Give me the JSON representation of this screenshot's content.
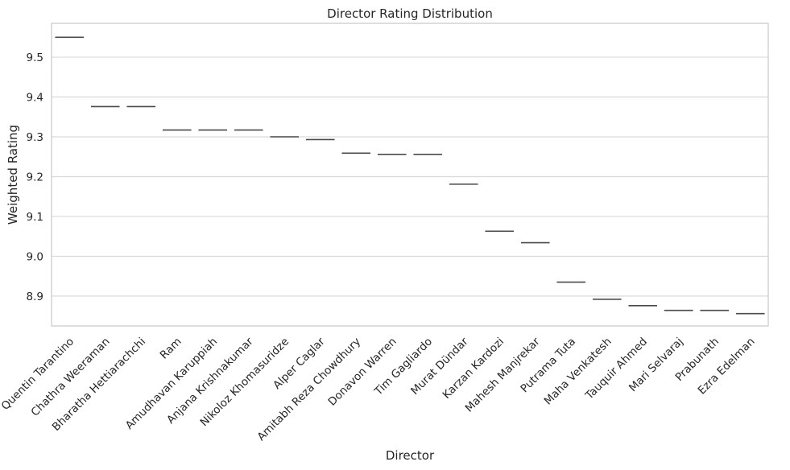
{
  "chart_data": {
    "type": "box",
    "title": "Director Rating Distribution",
    "xlabel": "Director",
    "ylabel": "Weighted Rating",
    "ylim": [
      8.825,
      9.585
    ],
    "yticks": [
      "8.9",
      "9.0",
      "9.1",
      "9.2",
      "9.3",
      "9.4",
      "9.5"
    ],
    "grid": true,
    "legend": "none",
    "categories": [
      "Quentin Tarantino",
      "Chathra Weeraman",
      "Bharatha Hettiarachchi",
      "Ram",
      "Amudhavan Karuppiah",
      "Anjana Krishnakumar",
      "Nikoloz Khomasuridze",
      "Alper Caglar",
      "Amitabh Reza Chowdhury",
      "Donavon Warren",
      "Tim Gagliardo",
      "Murat Dündar",
      "Karzan Kardozi",
      "Mahesh Manjrekar",
      "Putrama Tuta",
      "Maha Venkatesh",
      "Tauquir Ahmed",
      "Mari Selvaraj",
      "Prabunath",
      "Ezra Edelman"
    ],
    "values": [
      9.55,
      9.376,
      9.376,
      9.317,
      9.317,
      9.317,
      9.3,
      9.293,
      9.259,
      9.256,
      9.256,
      9.181,
      9.063,
      9.034,
      8.935,
      8.892,
      8.876,
      8.864,
      8.864,
      8.856
    ],
    "colors": {
      "median": "#4a4a4a",
      "grid": "#d9d9d9",
      "frame": "#cccccc"
    }
  }
}
